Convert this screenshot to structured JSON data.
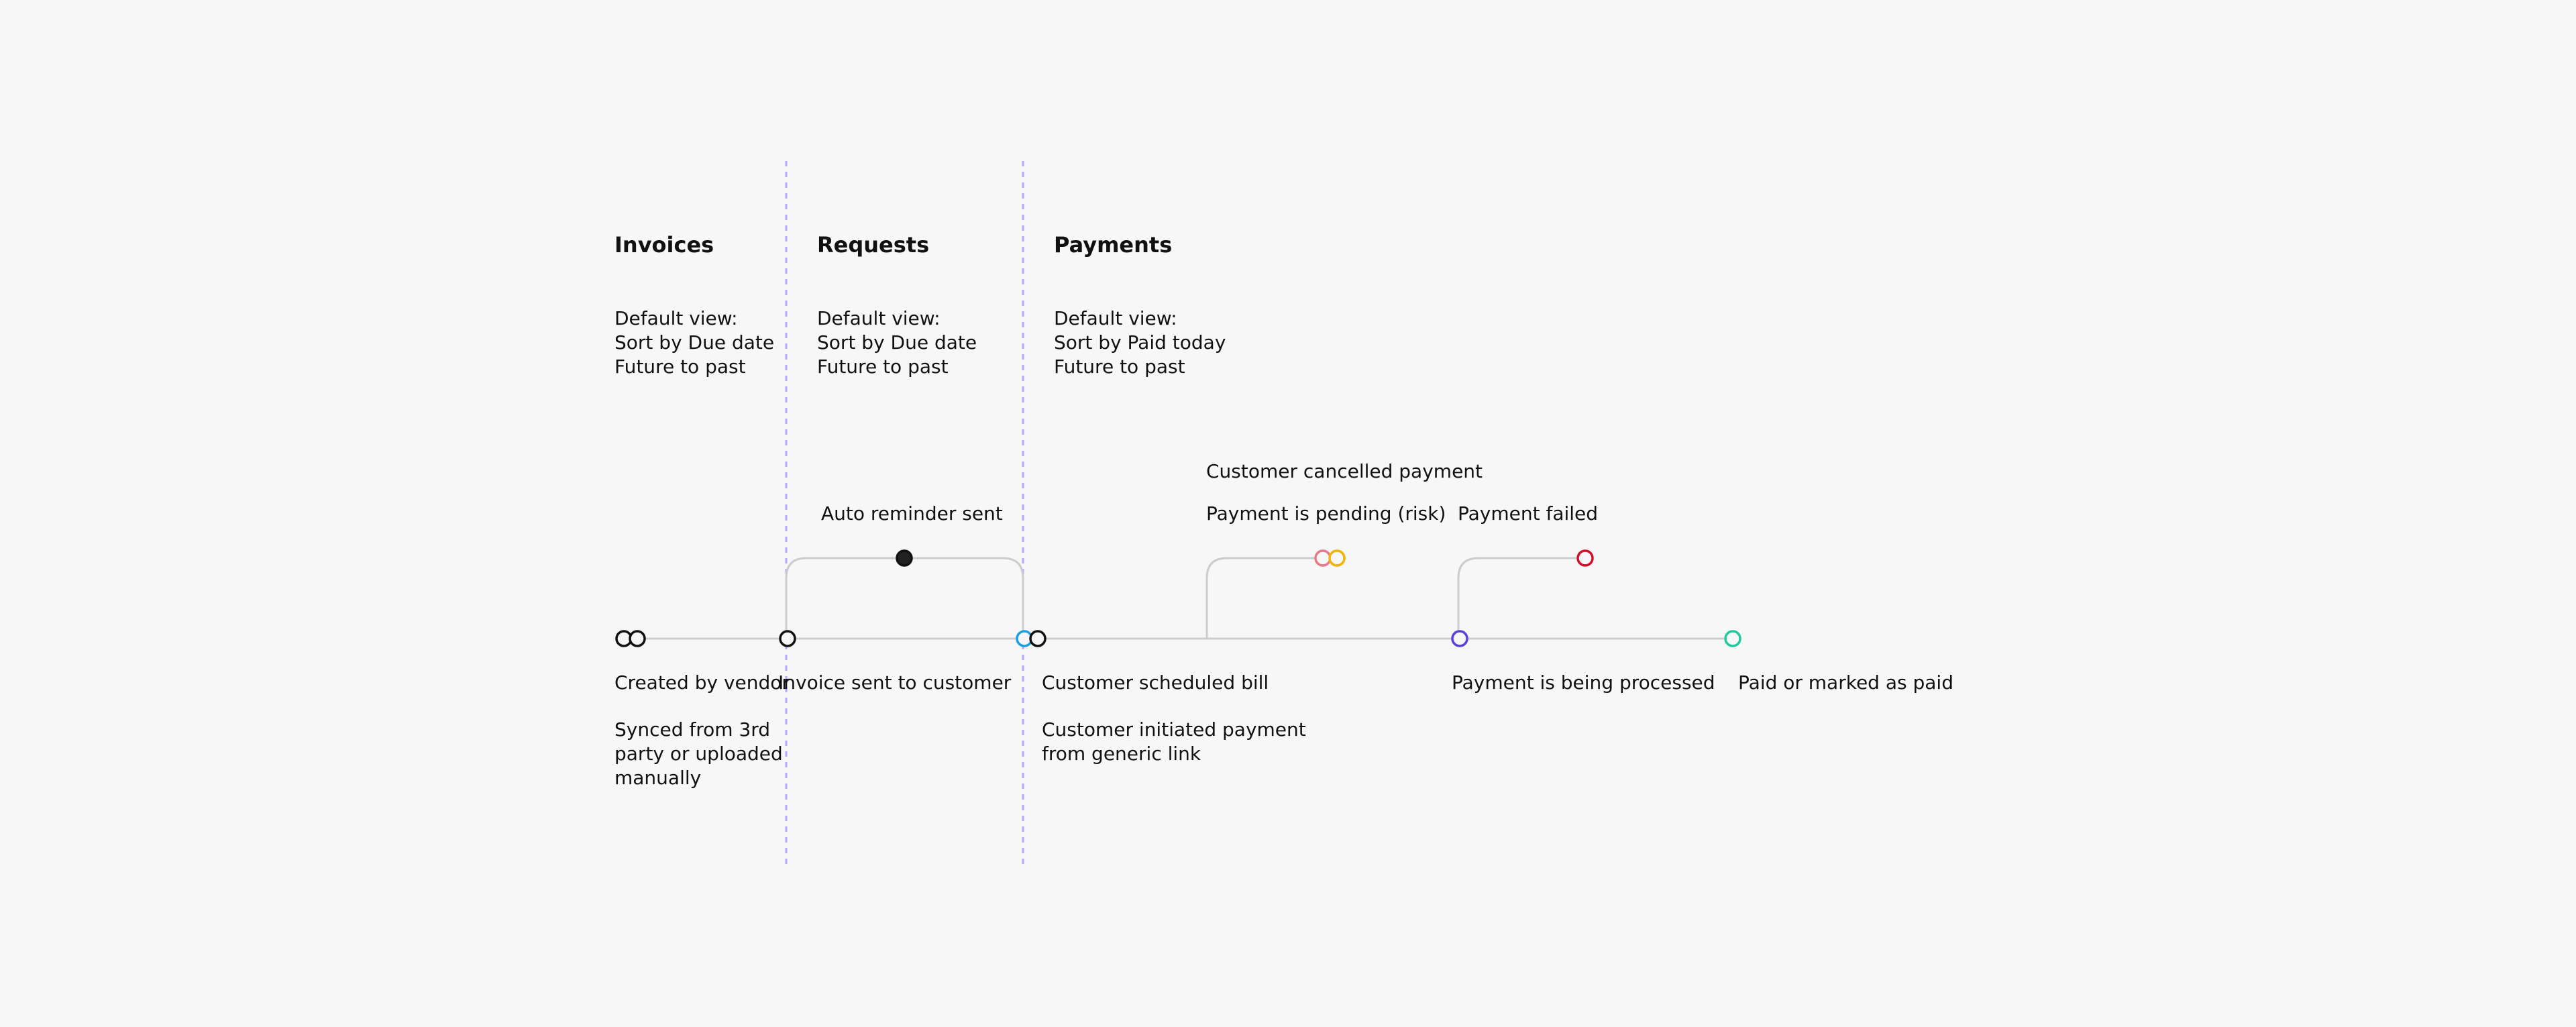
{
  "sections": [
    {
      "heading": "Invoices",
      "default_view": [
        "Default view:",
        "Sort by Due date",
        "Future to past"
      ]
    },
    {
      "heading": "Requests",
      "default_view": [
        "Default view:",
        "Sort by Due date",
        "Future to past"
      ]
    },
    {
      "heading": "Payments",
      "default_view": [
        "Default view:",
        "Sort by Paid today",
        "Future to past"
      ]
    }
  ],
  "labels": {
    "created_by_vendor": "Created by vendor",
    "synced": [
      "Synced from 3rd",
      "party or uploaded",
      "manually"
    ],
    "invoice_sent": "Invoice sent to customer",
    "auto_reminder": "Auto reminder sent",
    "customer_scheduled": "Customer scheduled bill",
    "customer_initiated": [
      "Customer initiated payment",
      "from generic link"
    ],
    "customer_cancelled": "Customer cancelled payment",
    "payment_pending": "Payment is pending (risk)",
    "payment_failed": "Payment failed",
    "payment_processing": "Payment is being processed",
    "paid": "Paid or marked as paid"
  },
  "colors": {
    "background": "#f7f7f7",
    "line": "#cccccc",
    "divider": "#b3a9ff",
    "node_default": "#111111",
    "node_blue": "#1ba0e0",
    "node_pink": "#e8788a",
    "node_yellow": "#f0b400",
    "node_purple": "#5b3fd9",
    "node_red": "#d0102a",
    "node_teal": "#1ec9a0"
  }
}
